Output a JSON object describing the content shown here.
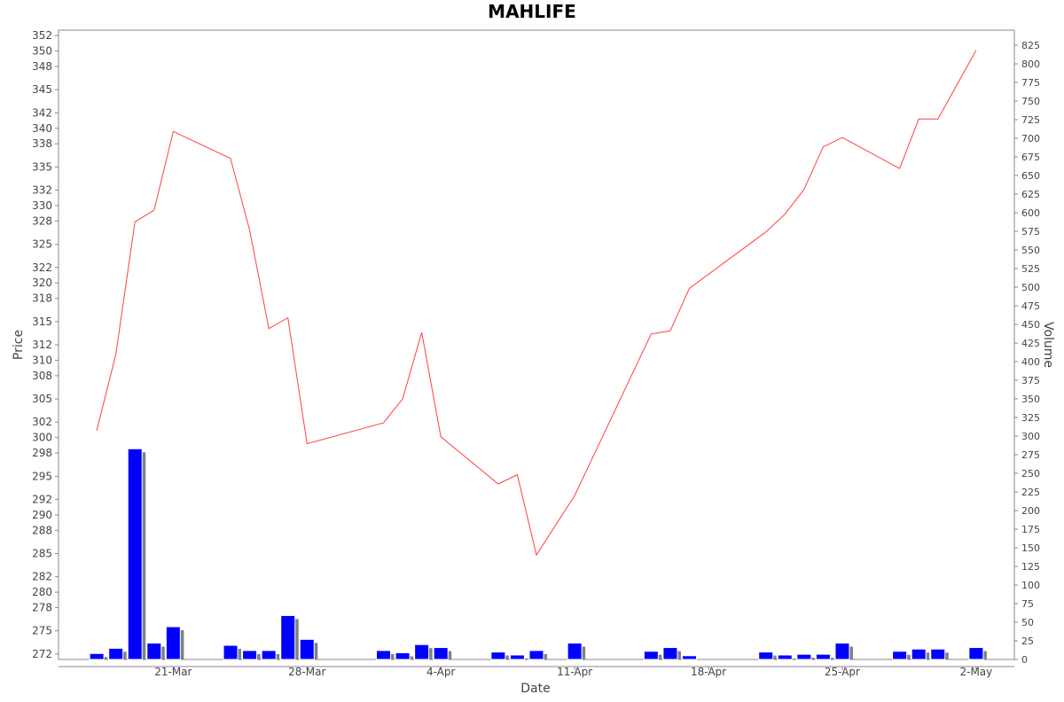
{
  "chart_data": {
    "type": "line+bar",
    "title": "MAHLIFE",
    "xlabel": "Date",
    "ylabel": "Price",
    "y2label": "Volume",
    "x_ticks": [
      "21-Mar",
      "28-Mar",
      "4-Apr",
      "11-Apr",
      "18-Apr",
      "25-Apr",
      "2-May"
    ],
    "price_ticks": [
      352,
      350,
      348,
      345,
      342,
      340,
      338,
      335,
      332,
      330,
      328,
      325,
      322,
      320,
      318,
      315,
      312,
      310,
      308,
      305,
      302,
      300,
      298,
      295,
      292,
      290,
      288,
      285,
      282,
      280,
      278,
      275,
      272
    ],
    "volume_ticks": [
      825,
      800,
      775,
      750,
      725,
      700,
      675,
      650,
      625,
      600,
      575,
      550,
      525,
      500,
      475,
      450,
      425,
      400,
      375,
      350,
      325,
      300,
      275,
      250,
      225,
      200,
      175,
      150,
      125,
      100,
      75,
      50,
      25,
      0
    ],
    "price_ylim": [
      271.3,
      352.7
    ],
    "volume_ylim": [
      0,
      825
    ],
    "grid": false,
    "colors": {
      "price_line": "#ff4040",
      "volume_bar": "#0000ff",
      "volume_shadow": "#808080"
    },
    "series": [
      {
        "name": "Price",
        "kind": "line",
        "x": [
          "2022-03-17",
          "2022-03-18",
          "2022-03-19",
          "2022-03-20",
          "2022-03-21",
          "2022-03-24",
          "2022-03-25",
          "2022-03-26",
          "2022-03-27",
          "2022-03-28",
          "2022-04-01",
          "2022-04-02",
          "2022-04-03",
          "2022-04-04",
          "2022-04-07",
          "2022-04-08",
          "2022-04-09",
          "2022-04-11",
          "2022-04-15",
          "2022-04-16",
          "2022-04-17",
          "2022-04-21",
          "2022-04-22",
          "2022-04-23",
          "2022-04-24",
          "2022-04-25",
          "2022-04-28",
          "2022-04-29",
          "2022-04-30",
          "2022-05-02"
        ],
        "values": [
          300.9,
          310.8,
          327.9,
          329.4,
          339.6,
          336.1,
          326.8,
          314.1,
          315.5,
          299.2,
          301.9,
          305.0,
          313.6,
          300.1,
          294.0,
          295.2,
          284.8,
          292.5,
          313.4,
          313.8,
          319.3,
          326.6,
          328.9,
          332.1,
          337.6,
          338.8,
          334.8,
          341.2,
          341.2,
          350.1
        ]
      },
      {
        "name": "Volume",
        "kind": "bar",
        "x": [
          "2022-03-17",
          "2022-03-18",
          "2022-03-19",
          "2022-03-20",
          "2022-03-21",
          "2022-03-24",
          "2022-03-25",
          "2022-03-26",
          "2022-03-27",
          "2022-03-28",
          "2022-04-01",
          "2022-04-02",
          "2022-04-03",
          "2022-04-04",
          "2022-04-07",
          "2022-04-08",
          "2022-04-09",
          "2022-04-11",
          "2022-04-15",
          "2022-04-16",
          "2022-04-17",
          "2022-04-21",
          "2022-04-22",
          "2022-04-23",
          "2022-04-24",
          "2022-04-25",
          "2022-04-28",
          "2022-04-29",
          "2022-04-30",
          "2022-05-02"
        ],
        "values": [
          8,
          15,
          283,
          22,
          44,
          19,
          12,
          12,
          59,
          27,
          12,
          9,
          20,
          16,
          10,
          6,
          12,
          22,
          11,
          16,
          5,
          10,
          6,
          7,
          7,
          22,
          11,
          14,
          14,
          16
        ]
      }
    ]
  }
}
